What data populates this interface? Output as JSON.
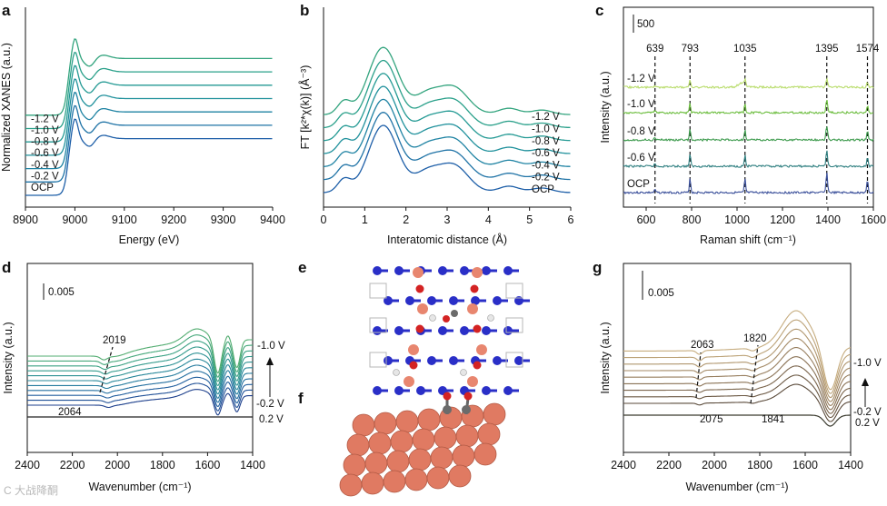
{
  "panel_labels": {
    "a": "a",
    "b": "b",
    "c": "c",
    "d": "d",
    "e": "e",
    "f": "f",
    "g": "g"
  },
  "chart_data": [
    {
      "id": "a",
      "type": "line",
      "xlabel": "Energy (eV)",
      "ylabel": "Normalized XANES (a.u.)",
      "xlim": [
        8900,
        9400
      ],
      "xticks": [
        "8900",
        "9000",
        "9100",
        "9200",
        "9300",
        "9400"
      ],
      "series": [
        {
          "name": "OCP",
          "color": "#1e5fa8"
        },
        {
          "name": "-0.2 V",
          "color": "#1f73a6"
        },
        {
          "name": "-0.4 V",
          "color": "#1f83a3"
        },
        {
          "name": "-0.6 V",
          "color": "#20919c"
        },
        {
          "name": "-0.8 V",
          "color": "#249a94"
        },
        {
          "name": "-1.0 V",
          "color": "#2aa08a"
        },
        {
          "name": "-1.2 V",
          "color": "#33a47e"
        }
      ]
    },
    {
      "id": "b",
      "type": "line",
      "xlabel": "Interatomic distance (Å)",
      "ylabel": "FT [k²*χ(k)] (Å⁻³)",
      "xlim": [
        0,
        6
      ],
      "xticks": [
        "0",
        "1",
        "2",
        "3",
        "4",
        "5",
        "6"
      ],
      "series": [
        {
          "name": "OCP",
          "color": "#1e5fa8"
        },
        {
          "name": "-0.2 V",
          "color": "#1f73a6"
        },
        {
          "name": "-0.4 V",
          "color": "#1f83a3"
        },
        {
          "name": "-0.6 V",
          "color": "#20919c"
        },
        {
          "name": "-0.8 V",
          "color": "#249a94"
        },
        {
          "name": "-1.0 V",
          "color": "#2aa08a"
        },
        {
          "name": "-1.2 V",
          "color": "#33a47e"
        }
      ]
    },
    {
      "id": "c",
      "type": "line",
      "xlabel": "Raman shift (cm⁻¹)",
      "ylabel": "Intensity (a.u.)",
      "xlim": [
        500,
        1600
      ],
      "xticks": [
        "600",
        "800",
        "1000",
        "1200",
        "1400",
        "1600"
      ],
      "scale_bar": "500",
      "peaks": [
        "639",
        "793",
        "1035",
        "1395",
        "1574"
      ],
      "peak_positions": [
        639,
        793,
        1035,
        1395,
        1574
      ],
      "series": [
        {
          "name": "OCP",
          "color": "#3a4f9a"
        },
        {
          "name": "-0.6 V",
          "color": "#2f7f80"
        },
        {
          "name": "-0.8 V",
          "color": "#3c9a4c"
        },
        {
          "name": "-1.0 V",
          "color": "#6cbd3e"
        },
        {
          "name": "-1.2 V",
          "color": "#b8dc6a"
        }
      ]
    },
    {
      "id": "d",
      "type": "line",
      "xlabel": "Wavenumber (cm⁻¹)",
      "ylabel": "Intensity (a.u.)",
      "xlim": [
        2400,
        1400
      ],
      "xticks": [
        "2400",
        "2200",
        "2000",
        "1800",
        "1600",
        "1400"
      ],
      "scale_bar": "0.005",
      "annotations": {
        "top": "2019",
        "bottom": "2064"
      },
      "labels": {
        "top": "-1.0 V",
        "bottom": "-0.2 V",
        "baseline": "0.2 V"
      }
    },
    {
      "id": "g",
      "type": "line",
      "xlabel": "Wavenumber (cm⁻¹)",
      "ylabel": "Intensity (a.u.)",
      "xlim": [
        2400,
        1400
      ],
      "xticks": [
        "2400",
        "2200",
        "2000",
        "1800",
        "1600",
        "1400"
      ],
      "scale_bar": "0.005",
      "annotations": {
        "top1": "2063",
        "top2": "1820",
        "bottom1": "2075",
        "bottom2": "1841"
      },
      "labels": {
        "top": "-1.0 V",
        "bottom": "-0.2 V",
        "baseline": "0.2 V"
      }
    }
  ],
  "watermark": "C 大战降酮"
}
